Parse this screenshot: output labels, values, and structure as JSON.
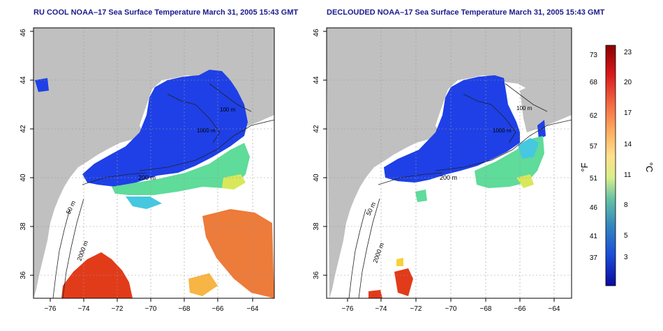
{
  "panels": [
    {
      "title": "RU COOL NOAA–17 Sea Surface Temperature March 31, 2005 15:43 GMT",
      "x_ticks": [
        "−76",
        "−74",
        "−72",
        "−70",
        "−68",
        "−66",
        "−64"
      ],
      "y_ticks": [
        "36",
        "38",
        "40",
        "42",
        "44",
        "46"
      ],
      "isobath_labels": [
        "50 m",
        "200 m",
        "1000 m",
        "2000 m",
        "100 m"
      ]
    },
    {
      "title": "DECLOUDED NOAA–17 Sea Surface Temperature March 31, 2005 15:43 GMT",
      "x_ticks": [
        "−76",
        "−74",
        "−72",
        "−70",
        "−68",
        "−66",
        "−64"
      ],
      "y_ticks": [
        "36",
        "38",
        "40",
        "42",
        "44",
        "46"
      ],
      "isobath_labels": [
        "50 m",
        "200 m",
        "1000 m",
        "2000 m",
        "100 m"
      ]
    }
  ],
  "colorbar": {
    "f_ticks": [
      "73",
      "68",
      "62",
      "57",
      "51",
      "46",
      "41",
      "37"
    ],
    "c_ticks": [
      "23",
      "20",
      "17",
      "14",
      "11",
      "8",
      "5",
      "3"
    ],
    "f_label": "°F",
    "c_label": "°C",
    "colors": [
      "#8b0000",
      "#d7191c",
      "#f46d43",
      "#fdae61",
      "#fee08b",
      "#d9ef8b",
      "#66c2a5",
      "#3288bd",
      "#1c4ed8",
      "#0a0aa0"
    ]
  },
  "colors": {
    "land": "#c0c0c0",
    "cold": "#1e40e6",
    "warm": "#e23b1a",
    "title": "#1a1a8c"
  }
}
